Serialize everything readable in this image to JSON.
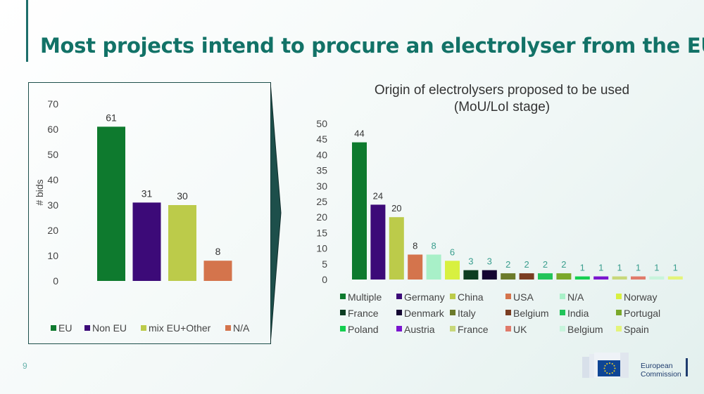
{
  "slide": {
    "title": "Most projects intend to procure an electrolyser from the EU",
    "page_number": "9",
    "logo_line1": "European",
    "logo_line2": "Commission"
  },
  "chart_data": [
    {
      "type": "bar",
      "title": "",
      "ylabel": "# bids",
      "xlabel": "",
      "ylim": [
        0,
        70
      ],
      "yticks": [
        0,
        10,
        20,
        30,
        40,
        50,
        60,
        70
      ],
      "categories": [
        "EU",
        "Non EU",
        "mix EU+Other",
        "N/A"
      ],
      "values": [
        61,
        31,
        30,
        8
      ],
      "colors": [
        "#0e7a2e",
        "#3c0a78",
        "#bccb4a",
        "#d4744c"
      ],
      "legend_position": "bottom",
      "grid": false
    },
    {
      "type": "bar",
      "title": "Origin of electrolysers proposed to be used (MoU/LoI stage)",
      "title_lines": [
        "Origin of electrolysers proposed to be used",
        "(MoU/LoI stage)"
      ],
      "ylabel": "",
      "xlabel": "",
      "ylim": [
        0,
        50
      ],
      "yticks": [
        0,
        5,
        10,
        15,
        20,
        25,
        30,
        35,
        40,
        45,
        50
      ],
      "categories": [
        "Multiple",
        "Germany",
        "China",
        "USA",
        "N/A",
        "Norway",
        "France",
        "Denmark",
        "Italy",
        "Belgium",
        "India",
        "Portugal",
        "Poland",
        "Austria",
        "France",
        "UK",
        "Belgium",
        "Spain"
      ],
      "values": [
        44,
        24,
        20,
        8,
        8,
        6,
        3,
        3,
        2,
        2,
        2,
        2,
        1,
        1,
        1,
        1,
        1,
        1
      ],
      "colors": [
        "#0e7a2e",
        "#3c0a78",
        "#bccb4a",
        "#d4744c",
        "#a8f0c8",
        "#d8f040",
        "#0c3d22",
        "#140532",
        "#6b7a2a",
        "#7a3d22",
        "#22c45a",
        "#7aa82a",
        "#14cf50",
        "#7a14cf",
        "#c8d87a",
        "#e07a6a",
        "#c8f4dc",
        "#e4f47a"
      ],
      "label_colors": [
        "#333333",
        "#333333",
        "#333333",
        "#333333",
        "#3a9e8e",
        "#3a9e8e",
        "#3a9e8e",
        "#3a9e8e",
        "#3a9e8e",
        "#3a9e8e",
        "#3a9e8e",
        "#3a9e8e",
        "#3a9e8e",
        "#3a9e8e",
        "#3a9e8e",
        "#3a9e8e",
        "#3a9e8e",
        "#3a9e8e"
      ],
      "legend_position": "bottom",
      "grid": false
    }
  ]
}
